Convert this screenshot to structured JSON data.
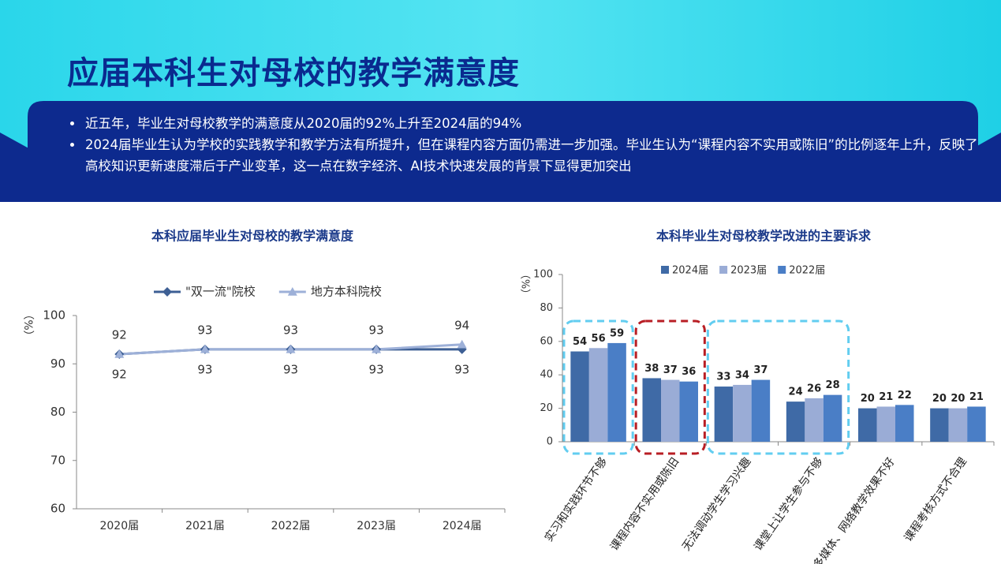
{
  "slide": {
    "title": "应届本科生对母校的教学满意度",
    "bullets": [
      "近五年，毕业生对母校教学的满意度从2020届的92%上升至2024届的94%",
      "2024届毕业生认为学校的实践教学和教学方法有所提升，但在课程内容方面仍需进一步加强。毕业生认为“课程内容不实用或陈旧”的比例逐年上升，反映了高校知识更新速度滞后于产业变革，这一点在数字经济、AI技术快速发展的背景下显得更加突出"
    ]
  },
  "chart_data": [
    {
      "type": "line",
      "title": "本科应届毕业生对母校的教学满意度",
      "y_label": "（%）",
      "categories": [
        "2020届",
        "2021届",
        "2022届",
        "2023届",
        "2024届"
      ],
      "series": [
        {
          "name": "\"双一流\"院校",
          "color": "#3d5f94",
          "marker": "diamond",
          "label_side": "below",
          "values": [
            92,
            93,
            93,
            93,
            93
          ]
        },
        {
          "name": "地方本科院校",
          "color": "#9db0d8",
          "marker": "triangle",
          "label_side": "above",
          "values": [
            92,
            93,
            93,
            93,
            94
          ]
        }
      ],
      "ylim": [
        60,
        100
      ],
      "yticks": [
        60,
        70,
        80,
        90,
        100
      ],
      "grid": false,
      "legend": "top"
    },
    {
      "type": "bar",
      "title": "本科毕业生对母校教学改进的主要诉求",
      "y_label": "（%）",
      "categories": [
        "实习和实践环节不够",
        "课程内容不实用或陈旧",
        "无法调动学生学习兴趣",
        "课堂上让学生参与不够",
        "多媒体、网络教学效果不好",
        "课程考核方式不合理"
      ],
      "series": [
        {
          "name": "2024届",
          "color": "#3f6aa6",
          "values": [
            54,
            38,
            33,
            24,
            20,
            20
          ]
        },
        {
          "name": "2023届",
          "color": "#9aacd6",
          "values": [
            56,
            37,
            34,
            26,
            21,
            20
          ]
        },
        {
          "name": "2022届",
          "color": "#4a7ec6",
          "values": [
            59,
            36,
            37,
            28,
            22,
            21
          ]
        }
      ],
      "ylim": [
        0,
        100
      ],
      "yticks": [
        0,
        20,
        40,
        60,
        80,
        100
      ],
      "grid": false,
      "legend": "top"
    }
  ]
}
